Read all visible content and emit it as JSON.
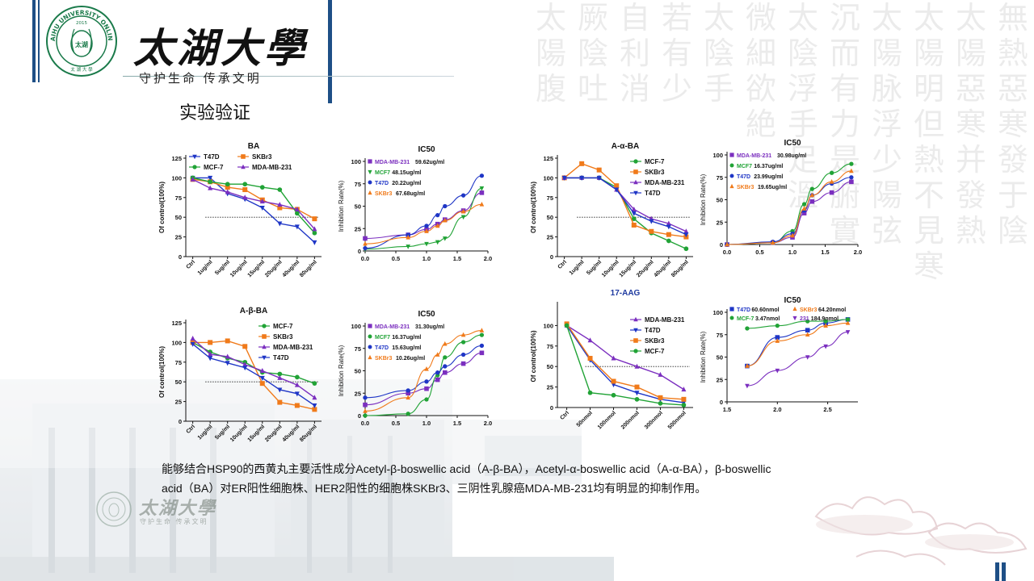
{
  "header": {
    "school_name": "太湖大學",
    "motto": "守护生命 传承文明",
    "seal_text": "TAIHU UNIVERSITY ONLINE",
    "seal_year": "2015",
    "seal_center": "太湖",
    "seal_bottom": "太 湖 大 學"
  },
  "section_title": "实验验证",
  "watermark": {
    "name": "太湖大學",
    "motto": "守护生命 传承文明"
  },
  "background_calligraphy": [
    "無熱惡寒發于陰",
    "太陽惡寒并發熱",
    "太陽明但熱不見寒",
    "太陽脉浮少陽弦",
    "沉而有力是腑實",
    "太陰浮手足溫",
    "微細欲絶",
    "太陰手",
    "若有少",
    "自利消",
    "厥陰吐",
    "太陽腹"
  ],
  "colors": {
    "purple": "#7b2fbf",
    "green": "#21a336",
    "blue": "#1f36c6",
    "orange": "#f07a1a",
    "accent": "#1e4f86"
  },
  "body_text": {
    "line1": "能够结合HSP90的西黄丸主要活性成分Acetyl-β-boswellic acid（A-β-BA），Acetyl-α-boswellic acid（A-α-BA），β-boswellic",
    "line2": "acid（BA）对ER阳性细胞株、HER2阳性的细胞株SKBr3、三阴性乳腺癌MDA-MB-231均有明显的抑制作用。"
  },
  "chart_data": [
    {
      "id": "ba",
      "type": "line",
      "title": "BA",
      "ylabel": "Of control(100%)",
      "xlabel": "",
      "categories": [
        "Ctrl",
        "1ug/ml",
        "5ug/ml",
        "10ug/ml",
        "15ug/ml",
        "20ug/ml",
        "40ug/ml",
        "80ug/ml"
      ],
      "ylim": [
        0,
        125
      ],
      "yticks": [
        0,
        25,
        50,
        75,
        100,
        125
      ],
      "reference_line": 50,
      "legend": [
        {
          "label": "T47D",
          "color": "#1f36c6",
          "marker": "tri-down"
        },
        {
          "label": "SKBr3",
          "color": "#f07a1a",
          "marker": "square"
        },
        {
          "label": "MCF-7",
          "color": "#21a336",
          "marker": "circle"
        },
        {
          "label": "MDA-MB-231",
          "color": "#7b2fbf",
          "marker": "tri-up"
        }
      ],
      "series": [
        {
          "name": "T47D",
          "color": "#1f36c6",
          "marker": "tri-down",
          "values": [
            100,
            100,
            80,
            73,
            62,
            42,
            38,
            18
          ]
        },
        {
          "name": "SKBr3",
          "color": "#f07a1a",
          "marker": "square",
          "values": [
            98,
            95,
            88,
            85,
            72,
            62,
            60,
            48
          ]
        },
        {
          "name": "MCF-7",
          "color": "#21a336",
          "marker": "circle",
          "values": [
            100,
            95,
            92,
            92,
            88,
            85,
            55,
            30
          ]
        },
        {
          "name": "MDA-MB-231",
          "color": "#7b2fbf",
          "marker": "tri-up",
          "values": [
            98,
            87,
            82,
            75,
            70,
            66,
            60,
            35
          ]
        }
      ]
    },
    {
      "id": "ic50-1",
      "type": "scatter",
      "title": "IC50",
      "ylabel": "Inhibition Rate(%)",
      "xlim": [
        0,
        2
      ],
      "xticks": [
        0.0,
        0.5,
        1.0,
        1.5,
        2.0
      ],
      "ylim": [
        0,
        100
      ],
      "yticks": [
        0,
        25,
        50,
        75,
        100
      ],
      "legend": [
        {
          "label": "MDA-MB-231",
          "value": "59.62ug/ml",
          "color": "#7b2fbf",
          "marker": "square"
        },
        {
          "label": "MCF7",
          "value": "48.15ug/ml",
          "color": "#21a336",
          "marker": "tri-down"
        },
        {
          "label": "T47D",
          "value": "20.22ug/ml",
          "color": "#1f36c6",
          "marker": "circle"
        },
        {
          "label": "SKBr3",
          "value": "67.68ug/ml",
          "color": "#f07a1a",
          "marker": "tri-up"
        }
      ],
      "series": [
        {
          "name": "MDA-MB-231",
          "color": "#7b2fbf",
          "marker": "square",
          "x": [
            0,
            0.7,
            1.0,
            1.18,
            1.3,
            1.6,
            1.9
          ],
          "y": [
            14,
            18,
            24,
            30,
            35,
            45,
            65
          ]
        },
        {
          "name": "MCF7",
          "color": "#21a336",
          "marker": "tri-down",
          "x": [
            0,
            0.7,
            1.0,
            1.18,
            1.3,
            1.6,
            1.9
          ],
          "y": [
            2,
            5,
            8,
            10,
            14,
            38,
            70
          ]
        },
        {
          "name": "T47D",
          "color": "#1f36c6",
          "marker": "circle",
          "x": [
            0,
            0.7,
            1.0,
            1.18,
            1.3,
            1.6,
            1.9
          ],
          "y": [
            3,
            18,
            28,
            40,
            50,
            62,
            84
          ]
        },
        {
          "name": "SKBr3",
          "color": "#f07a1a",
          "marker": "tri-up",
          "x": [
            0,
            0.7,
            1.0,
            1.18,
            1.3,
            1.6,
            1.9
          ],
          "y": [
            8,
            15,
            22,
            28,
            34,
            44,
            52
          ]
        }
      ]
    },
    {
      "id": "a-alpha-ba",
      "type": "line",
      "title": "A-α-BA",
      "ylabel": "Of control(100%)",
      "categories": [
        "Ctrl",
        "1ug/ml",
        "5ug/ml",
        "10ug/ml",
        "15ug/ml",
        "20ug/ml",
        "40ug/ml",
        "80ug/ml"
      ],
      "ylim": [
        0,
        125
      ],
      "yticks": [
        0,
        25,
        50,
        75,
        100,
        125
      ],
      "reference_line": 50,
      "legend": [
        {
          "label": "MCF-7",
          "color": "#21a336",
          "marker": "circle"
        },
        {
          "label": "SKBr3",
          "color": "#f07a1a",
          "marker": "square"
        },
        {
          "label": "MDA-MB-231",
          "color": "#7b2fbf",
          "marker": "tri-up"
        },
        {
          "label": "T47D",
          "color": "#1f36c6",
          "marker": "tri-down"
        }
      ],
      "series": [
        {
          "name": "MCF-7",
          "color": "#21a336",
          "marker": "circle",
          "values": [
            100,
            100,
            100,
            88,
            48,
            30,
            20,
            10
          ]
        },
        {
          "name": "SKBr3",
          "color": "#f07a1a",
          "marker": "square",
          "values": [
            100,
            118,
            110,
            90,
            40,
            32,
            28,
            25
          ]
        },
        {
          "name": "MDA-MB-231",
          "color": "#7b2fbf",
          "marker": "tri-up",
          "values": [
            100,
            100,
            100,
            85,
            60,
            48,
            42,
            32
          ]
        },
        {
          "name": "T47D",
          "color": "#1f36c6",
          "marker": "tri-down",
          "values": [
            100,
            100,
            100,
            85,
            55,
            45,
            38,
            28
          ]
        }
      ]
    },
    {
      "id": "ic50-2",
      "type": "scatter",
      "title": "IC50",
      "ylabel": "Inhibition Rate(%)",
      "xlim": [
        0,
        2
      ],
      "xticks": [
        0.0,
        0.5,
        1.0,
        1.5,
        2.0
      ],
      "ylim": [
        0,
        100
      ],
      "yticks": [
        0,
        25,
        50,
        75,
        100
      ],
      "legend": [
        {
          "label": "MDA-MB-231",
          "value": "30.98ug/ml",
          "color": "#7b2fbf",
          "marker": "square"
        },
        {
          "label": "MCF7",
          "value": "16.37ug/ml",
          "color": "#21a336",
          "marker": "circle"
        },
        {
          "label": "T47D",
          "value": "23.99ug/ml",
          "color": "#1f36c6",
          "marker": "circle"
        },
        {
          "label": "SKBr3",
          "value": "19.65ug/ml",
          "color": "#f07a1a",
          "marker": "tri-up"
        }
      ],
      "series": [
        {
          "name": "MDA-MB-231",
          "color": "#7b2fbf",
          "marker": "square",
          "x": [
            0,
            0.7,
            1.0,
            1.18,
            1.3,
            1.6,
            1.9
          ],
          "y": [
            0,
            2,
            8,
            35,
            48,
            58,
            70
          ]
        },
        {
          "name": "MCF7",
          "color": "#21a336",
          "marker": "circle",
          "x": [
            0,
            0.7,
            1.0,
            1.18,
            1.3,
            1.6,
            1.9
          ],
          "y": [
            0,
            2,
            15,
            45,
            62,
            80,
            90
          ]
        },
        {
          "name": "T47D",
          "color": "#1f36c6",
          "marker": "circle",
          "x": [
            0,
            0.7,
            1.0,
            1.18,
            1.3,
            1.6,
            1.9
          ],
          "y": [
            0,
            3,
            12,
            38,
            55,
            68,
            75
          ]
        },
        {
          "name": "SKBr3",
          "color": "#f07a1a",
          "marker": "tri-up",
          "x": [
            0,
            0.7,
            1.0,
            1.18,
            1.3,
            1.6,
            1.9
          ],
          "y": [
            0,
            2,
            10,
            40,
            55,
            70,
            82
          ]
        }
      ]
    },
    {
      "id": "a-beta-ba",
      "type": "line",
      "title": "A-β-BA",
      "ylabel": "Of control(100%)",
      "categories": [
        "Ctrl",
        "1ug/ml",
        "5ug/ml",
        "10ug/ml",
        "15ug/ml",
        "20ug/ml",
        "40ug/ml",
        "80ug/ml"
      ],
      "ylim": [
        0,
        125
      ],
      "yticks": [
        0,
        25,
        50,
        75,
        100,
        125
      ],
      "reference_line": 50,
      "legend": [
        {
          "label": "MCF-7",
          "color": "#21a336",
          "marker": "circle"
        },
        {
          "label": "SKBr3",
          "color": "#f07a1a",
          "marker": "square"
        },
        {
          "label": "MDA-MB-231",
          "color": "#7b2fbf",
          "marker": "tri-up"
        },
        {
          "label": "T47D",
          "color": "#1f36c6",
          "marker": "tri-down"
        }
      ],
      "series": [
        {
          "name": "MCF-7",
          "color": "#21a336",
          "marker": "circle",
          "values": [
            100,
            88,
            80,
            75,
            62,
            60,
            56,
            48
          ]
        },
        {
          "name": "SKBr3",
          "color": "#f07a1a",
          "marker": "square",
          "values": [
            100,
            100,
            102,
            95,
            48,
            24,
            20,
            15
          ]
        },
        {
          "name": "MDA-MB-231",
          "color": "#7b2fbf",
          "marker": "tri-up",
          "values": [
            105,
            85,
            82,
            72,
            64,
            55,
            46,
            30
          ]
        },
        {
          "name": "T47D",
          "color": "#1f36c6",
          "marker": "tri-down",
          "values": [
            98,
            80,
            74,
            68,
            55,
            40,
            35,
            20
          ]
        }
      ]
    },
    {
      "id": "ic50-3",
      "type": "scatter",
      "title": "IC50",
      "ylabel": "Inhibition Rate(%)",
      "xlim": [
        0,
        2
      ],
      "xticks": [
        0.0,
        0.5,
        1.0,
        1.5,
        2.0
      ],
      "ylim": [
        0,
        100
      ],
      "yticks": [
        0,
        25,
        50,
        75,
        100
      ],
      "legend": [
        {
          "label": "MDA-MB-231",
          "value": "31.30ug/ml",
          "color": "#7b2fbf",
          "marker": "square"
        },
        {
          "label": "MCF7",
          "value": "16.37ug/ml",
          "color": "#21a336",
          "marker": "circle"
        },
        {
          "label": "T47D",
          "value": "15.63ug/ml",
          "color": "#1f36c6",
          "marker": "circle"
        },
        {
          "label": "SKBr3",
          "value": "10.26ug/ml",
          "color": "#f07a1a",
          "marker": "tri-up"
        }
      ],
      "series": [
        {
          "name": "MDA-MB-231",
          "color": "#7b2fbf",
          "marker": "square",
          "x": [
            0,
            0.7,
            1.0,
            1.18,
            1.3,
            1.6,
            1.9
          ],
          "y": [
            12,
            25,
            30,
            40,
            48,
            58,
            70
          ]
        },
        {
          "name": "MCF7",
          "color": "#21a336",
          "marker": "circle",
          "x": [
            0,
            0.7,
            1.0,
            1.18,
            1.3,
            1.6,
            1.9
          ],
          "y": [
            0,
            2,
            18,
            45,
            65,
            82,
            90
          ]
        },
        {
          "name": "T47D",
          "color": "#1f36c6",
          "marker": "circle",
          "x": [
            0,
            0.7,
            1.0,
            1.18,
            1.3,
            1.6,
            1.9
          ],
          "y": [
            20,
            28,
            38,
            48,
            55,
            68,
            78
          ]
        },
        {
          "name": "SKBr3",
          "color": "#f07a1a",
          "marker": "tri-up",
          "x": [
            0,
            0.7,
            1.0,
            1.18,
            1.3,
            1.6,
            1.9
          ],
          "y": [
            5,
            20,
            52,
            68,
            80,
            90,
            95
          ]
        }
      ]
    },
    {
      "id": "17-aag",
      "type": "line",
      "title": "17-AAG",
      "ylabel": "Of control(100%)",
      "categories": [
        "Ctrl",
        "50nmol",
        "100nmol",
        "200nmol",
        "300nmol",
        "500nmol"
      ],
      "ylim": [
        0,
        125
      ],
      "yticks": [
        0,
        25,
        50,
        75,
        100
      ],
      "reference_line": 50,
      "legend": [
        {
          "label": "MDA-MB-231",
          "color": "#7b2fbf",
          "marker": "tri-up"
        },
        {
          "label": "T47D",
          "color": "#1f36c6",
          "marker": "tri-down"
        },
        {
          "label": "SKBr3",
          "color": "#f07a1a",
          "marker": "square"
        },
        {
          "label": "MCF-7",
          "color": "#21a336",
          "marker": "circle"
        }
      ],
      "series": [
        {
          "name": "MDA-MB-231",
          "color": "#7b2fbf",
          "marker": "tri-up",
          "values": [
            100,
            82,
            60,
            50,
            40,
            22
          ]
        },
        {
          "name": "T47D",
          "color": "#1f36c6",
          "marker": "tri-down",
          "values": [
            100,
            58,
            28,
            18,
            10,
            6
          ]
        },
        {
          "name": "SKBr3",
          "color": "#f07a1a",
          "marker": "square",
          "values": [
            102,
            60,
            32,
            25,
            12,
            10
          ]
        },
        {
          "name": "MCF-7",
          "color": "#21a336",
          "marker": "circle",
          "values": [
            100,
            18,
            15,
            10,
            5,
            3
          ]
        }
      ]
    },
    {
      "id": "ic50-4",
      "type": "scatter",
      "title": "IC50",
      "ylabel": "Inhibition Rate(%)",
      "xlim": [
        1.5,
        2.8
      ],
      "xticks": [
        1.5,
        2.0,
        2.5
      ],
      "ylim": [
        0,
        100
      ],
      "yticks": [
        0,
        25,
        50,
        75,
        100
      ],
      "legend": [
        {
          "label": "T47D",
          "value": "60.60nmol",
          "color": "#1f36c6",
          "marker": "square"
        },
        {
          "label": "SKBr3",
          "value": "64.20nmol",
          "color": "#f07a1a",
          "marker": "tri-up"
        },
        {
          "label": "MCF-7",
          "value": "3.47nmol",
          "color": "#21a336",
          "marker": "circle"
        },
        {
          "label": "231",
          "value": "184.9nmol",
          "color": "#7b2fbf",
          "marker": "tri-down"
        }
      ],
      "series": [
        {
          "name": "T47D",
          "color": "#1f36c6",
          "marker": "square",
          "x": [
            1.7,
            2.0,
            2.3,
            2.48,
            2.7
          ],
          "y": [
            40,
            72,
            80,
            88,
            92
          ]
        },
        {
          "name": "SKBr3",
          "color": "#f07a1a",
          "marker": "tri-up",
          "x": [
            1.7,
            2.0,
            2.3,
            2.48,
            2.7
          ],
          "y": [
            40,
            68,
            75,
            85,
            88
          ]
        },
        {
          "name": "MCF-7",
          "color": "#21a336",
          "marker": "circle",
          "x": [
            1.7,
            2.0,
            2.3,
            2.48,
            2.7
          ],
          "y": [
            82,
            85,
            90,
            90,
            92
          ]
        },
        {
          "name": "231",
          "color": "#7b2fbf",
          "marker": "tri-down",
          "x": [
            1.7,
            2.0,
            2.3,
            2.48,
            2.7
          ],
          "y": [
            18,
            35,
            50,
            62,
            78
          ]
        }
      ]
    }
  ]
}
